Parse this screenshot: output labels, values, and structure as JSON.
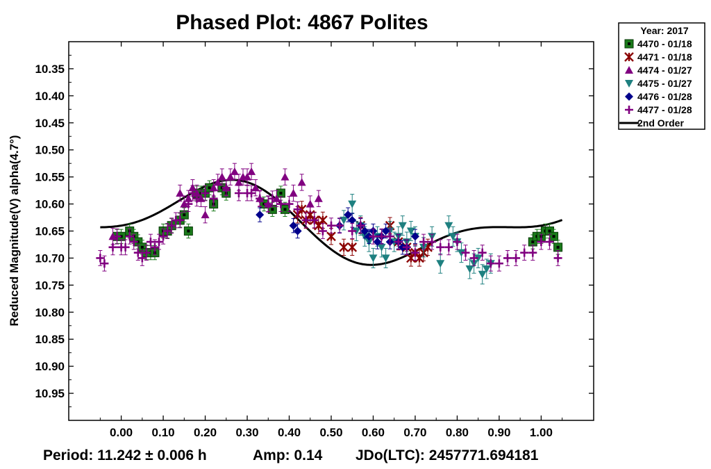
{
  "chart_data": {
    "type": "scatter",
    "title": "Phased Plot: 4867 Polites",
    "ylabel": "Reduced Magnitude(V) alpha(4.7°)",
    "xlabel": "",
    "xlim": [
      -0.125,
      1.125
    ],
    "ylim": [
      11.0,
      10.3
    ],
    "y_inverted": true,
    "grid": false,
    "x_ticks": [
      "0.00",
      "0.10",
      "0.20",
      "0.30",
      "0.40",
      "0.50",
      "0.60",
      "0.70",
      "0.80",
      "0.90",
      "1.00"
    ],
    "y_ticks": [
      "10.35",
      "10.40",
      "10.45",
      "10.50",
      "10.55",
      "10.60",
      "10.65",
      "10.70",
      "10.75",
      "10.80",
      "10.85",
      "10.90",
      "10.95"
    ],
    "legend": {
      "position": "top-right, outside plot",
      "title": "Year: 2017",
      "entries": [
        "4470 - 01/18",
        "4471 - 01/18",
        "4474 - 01/27",
        "4475 - 01/27",
        "4476 - 01/28",
        "4477 - 01/28",
        "2nd Order"
      ]
    },
    "series": [
      {
        "name": "4470 - 01/18",
        "marker": "square",
        "color": "#1a7a1a",
        "x": [
          -0.01,
          0.0,
          0.02,
          0.03,
          0.04,
          0.05,
          0.06,
          0.07,
          0.08,
          0.1,
          0.11,
          0.12,
          0.14,
          0.15,
          0.16,
          0.18,
          0.19,
          0.2,
          0.21,
          0.22,
          0.24,
          0.25,
          0.34,
          0.36,
          0.38,
          0.39,
          0.98,
          0.99,
          1.0,
          1.01,
          1.02,
          1.03,
          1.04
        ],
        "y": [
          10.66,
          10.66,
          10.65,
          10.66,
          10.67,
          10.68,
          10.69,
          10.69,
          10.69,
          10.65,
          10.65,
          10.64,
          10.63,
          10.62,
          10.65,
          10.58,
          10.58,
          10.58,
          10.57,
          10.6,
          10.57,
          10.58,
          10.6,
          10.61,
          10.58,
          10.61,
          10.67,
          10.66,
          10.66,
          10.65,
          10.65,
          10.66,
          10.68
        ],
        "yerr": 0.013
      },
      {
        "name": "4471 - 01/18",
        "marker": "x",
        "color": "#8b0000",
        "x": [
          0.42,
          0.43,
          0.44,
          0.45,
          0.46,
          0.47,
          0.48,
          0.5,
          0.53,
          0.55,
          0.57,
          0.64,
          0.66,
          0.68,
          0.69,
          0.7,
          0.71,
          0.72,
          0.73
        ],
        "y": [
          10.62,
          10.61,
          10.63,
          10.62,
          10.63,
          10.64,
          10.63,
          10.66,
          10.68,
          10.68,
          10.64,
          10.64,
          10.67,
          10.68,
          10.7,
          10.69,
          10.7,
          10.69,
          10.68
        ],
        "yerr": 0.015
      },
      {
        "name": "4474 - 01/27",
        "marker": "triangle-up",
        "color": "#800080",
        "x": [
          -0.02,
          0.14,
          0.15,
          0.16,
          0.17,
          0.18,
          0.19,
          0.2,
          0.22,
          0.23,
          0.24,
          0.25,
          0.26,
          0.27,
          0.28,
          0.29,
          0.3,
          0.31,
          0.32,
          0.33,
          0.35,
          0.37,
          0.39,
          0.41,
          0.43,
          0.45,
          0.47
        ],
        "y": [
          10.66,
          10.58,
          10.6,
          10.59,
          10.57,
          10.58,
          10.59,
          10.62,
          10.57,
          10.56,
          10.55,
          10.57,
          10.55,
          10.54,
          10.56,
          10.55,
          10.55,
          10.54,
          10.57,
          10.59,
          10.6,
          10.59,
          10.55,
          10.58,
          10.56,
          10.6,
          10.59
        ],
        "yerr": 0.015
      },
      {
        "name": "4475 - 01/27",
        "marker": "triangle-down",
        "color": "#1e8080",
        "x": [
          0.53,
          0.55,
          0.56,
          0.57,
          0.58,
          0.59,
          0.6,
          0.61,
          0.62,
          0.63,
          0.64,
          0.65,
          0.66,
          0.67,
          0.68,
          0.69,
          0.7,
          0.72,
          0.74,
          0.76,
          0.78,
          0.79,
          0.8,
          0.81,
          0.83,
          0.84,
          0.85,
          0.86,
          0.87,
          0.88
        ],
        "y": [
          10.63,
          10.6,
          10.65,
          10.64,
          10.66,
          10.67,
          10.7,
          10.66,
          10.68,
          10.7,
          10.65,
          10.67,
          10.66,
          10.64,
          10.67,
          10.65,
          10.66,
          10.68,
          10.66,
          10.71,
          10.64,
          10.66,
          10.67,
          10.69,
          10.72,
          10.71,
          10.7,
          10.73,
          10.72,
          10.71
        ],
        "yerr": 0.018
      },
      {
        "name": "4476 - 01/28",
        "marker": "diamond",
        "color": "#00008b",
        "x": [
          0.33,
          0.41,
          0.42,
          0.52,
          0.54,
          0.55,
          0.57,
          0.58,
          0.59,
          0.6,
          0.61,
          0.62,
          0.63,
          0.64,
          0.66,
          0.67,
          0.68,
          0.7
        ],
        "y": [
          10.62,
          10.64,
          10.65,
          10.64,
          10.62,
          10.63,
          10.64,
          10.65,
          10.66,
          10.65,
          10.67,
          10.66,
          10.65,
          10.67,
          10.67,
          10.68,
          10.68,
          10.66
        ],
        "yerr": 0.013
      },
      {
        "name": "4477 - 01/28",
        "marker": "plus",
        "color": "#800080",
        "x": [
          -0.05,
          -0.04,
          -0.02,
          -0.01,
          0.0,
          0.01,
          0.02,
          0.03,
          0.04,
          0.05,
          0.06,
          0.07,
          0.08,
          0.09,
          0.1,
          0.11,
          0.12,
          0.13,
          0.14,
          0.16,
          0.17,
          0.18,
          0.2,
          0.22,
          0.25,
          0.28,
          0.3,
          0.31,
          0.33,
          0.35,
          0.36,
          0.38,
          0.4,
          0.42,
          0.44,
          0.46,
          0.48,
          0.5,
          0.52,
          0.55,
          0.57,
          0.6,
          0.62,
          0.64,
          0.66,
          0.68,
          0.7,
          0.72,
          0.74,
          0.76,
          0.78,
          0.8,
          0.82,
          0.84,
          0.86,
          0.88,
          0.9,
          0.92,
          0.94,
          0.96,
          0.98,
          1.0,
          1.02,
          1.04
        ],
        "y": [
          10.7,
          10.71,
          10.68,
          10.66,
          10.68,
          10.68,
          10.66,
          10.67,
          10.69,
          10.7,
          10.69,
          10.67,
          10.68,
          10.67,
          10.66,
          10.65,
          10.64,
          10.63,
          10.63,
          10.6,
          10.58,
          10.59,
          10.58,
          10.59,
          10.57,
          10.58,
          10.58,
          10.58,
          10.59,
          10.6,
          10.59,
          10.6,
          10.6,
          10.61,
          10.63,
          10.63,
          10.65,
          10.64,
          10.64,
          10.65,
          10.64,
          10.66,
          10.66,
          10.66,
          10.67,
          10.68,
          10.69,
          10.67,
          10.67,
          10.68,
          10.68,
          10.67,
          10.69,
          10.7,
          10.69,
          10.71,
          10.71,
          10.7,
          10.7,
          10.69,
          10.69,
          10.67,
          10.67,
          10.7
        ],
        "yerr": 0.014
      }
    ],
    "fit": {
      "name": "2nd Order",
      "color": "#000000",
      "mean": 10.637,
      "a1": -0.022,
      "b1": -0.056,
      "a2": 0.025,
      "b2": 0.018,
      "x_range": [
        -0.05,
        1.05
      ]
    }
  },
  "footer": {
    "period": "Period: 11.242 ± 0.006 h",
    "amp": "Amp: 0.14",
    "jdo": "JDo(LTC): 2457771.694181"
  }
}
